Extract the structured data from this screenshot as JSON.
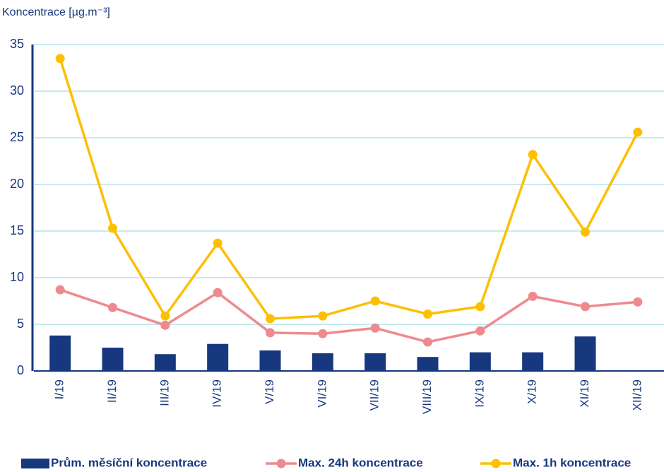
{
  "chart_data": {
    "type": "bar-line",
    "y_label": "Koncentrace [µg.m⁻³]",
    "categories": [
      "I/19",
      "II/19",
      "III/19",
      "IV/19",
      "V/19",
      "VI/19",
      "VII/19",
      "VIII/19",
      "IX/19",
      "X/19",
      "XI/19",
      "XII/19"
    ],
    "series": [
      {
        "name": "Prům. měsíční koncentrace",
        "type": "bar",
        "color": "#17377f",
        "values": [
          3.8,
          2.5,
          1.8,
          2.9,
          2.2,
          1.9,
          1.9,
          1.5,
          2.0,
          2.0,
          3.7,
          null
        ]
      },
      {
        "name": "Max. 24h koncentrace",
        "type": "line",
        "color": "#ee8a8f",
        "values": [
          8.7,
          6.8,
          4.9,
          8.4,
          4.1,
          4.0,
          4.6,
          3.1,
          4.3,
          8.0,
          6.9,
          7.4
        ]
      },
      {
        "name": "Max. 1h koncentrace",
        "type": "line",
        "color": "#fcc000",
        "values": [
          33.5,
          15.3,
          5.9,
          13.7,
          5.6,
          5.9,
          7.5,
          6.1,
          6.9,
          23.2,
          14.9,
          25.6
        ]
      }
    ],
    "ylim": [
      0,
      35
    ],
    "yticks": [
      0,
      5,
      10,
      15,
      20,
      25,
      30,
      35
    ],
    "grid": true,
    "legend": "bottom"
  }
}
